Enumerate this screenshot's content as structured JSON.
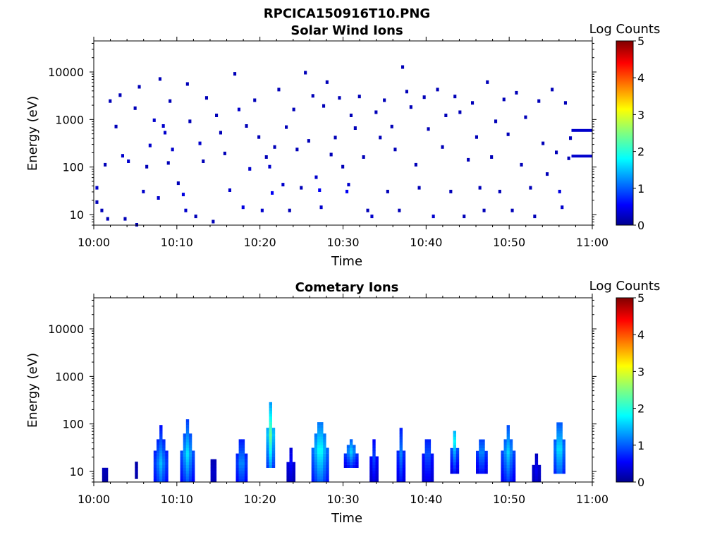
{
  "figure": {
    "title_line1": "RPCICA150916T10.PNG",
    "colorbar_label": "Log Counts",
    "colormap": "jet",
    "background": "#ffffff"
  },
  "chart_data": [
    {
      "type": "heatmap",
      "title": "Solar Wind Ions",
      "xlabel": "Time",
      "ylabel": "Energy (eV)",
      "y_scale": "log",
      "ylim": [
        6,
        45000
      ],
      "xlim": [
        "10:00",
        "11:00"
      ],
      "x_tick_labels": [
        "10:00",
        "10:10",
        "10:20",
        "10:30",
        "10:40",
        "10:50",
        "11:00"
      ],
      "y_tick_labels": [
        "10",
        "100",
        "1000",
        "10000"
      ],
      "colorbar": {
        "label": "Log Counts",
        "range": [
          0,
          5
        ],
        "tick_labels": [
          "0",
          "1",
          "2",
          "3",
          "4",
          "5"
        ]
      },
      "cells": [
        [
          0.2,
          18,
          0.2
        ],
        [
          0.2,
          36,
          0.3
        ],
        [
          0.8,
          12,
          0.2
        ],
        [
          1.2,
          110,
          0.2
        ],
        [
          1.5,
          8,
          0.2
        ],
        [
          1.8,
          2400,
          0.2
        ],
        [
          2.5,
          700,
          0.2
        ],
        [
          3.0,
          3200,
          0.2
        ],
        [
          3.3,
          170,
          0.3
        ],
        [
          3.6,
          8,
          0.2
        ],
        [
          4.0,
          130,
          0.3
        ],
        [
          4.8,
          1700,
          0.2
        ],
        [
          5.0,
          6,
          0.2
        ],
        [
          5.3,
          4800,
          0.2
        ],
        [
          5.8,
          30,
          0.3
        ],
        [
          6.2,
          100,
          0.2
        ],
        [
          6.6,
          280,
          0.3
        ],
        [
          7.1,
          950,
          0.3
        ],
        [
          7.6,
          22,
          0.3
        ],
        [
          7.8,
          7000,
          0.2
        ],
        [
          8.2,
          720,
          0.3
        ],
        [
          8.4,
          520,
          0.3
        ],
        [
          8.8,
          120,
          0.2
        ],
        [
          9.0,
          2400,
          0.2
        ],
        [
          9.3,
          230,
          0.3
        ],
        [
          10.0,
          45,
          0.2
        ],
        [
          10.6,
          26,
          0.4
        ],
        [
          10.9,
          12,
          0.3
        ],
        [
          11.1,
          5500,
          0.2
        ],
        [
          11.4,
          900,
          0.2
        ],
        [
          12.1,
          9,
          0.2
        ],
        [
          12.6,
          310,
          0.3
        ],
        [
          13.0,
          130,
          0.2
        ],
        [
          13.4,
          2800,
          0.2
        ],
        [
          14.2,
          7,
          0.2
        ],
        [
          14.6,
          1200,
          0.2
        ],
        [
          15.1,
          520,
          0.2
        ],
        [
          15.6,
          190,
          0.2
        ],
        [
          16.2,
          32,
          0.3
        ],
        [
          16.8,
          9000,
          0.2
        ],
        [
          17.3,
          1600,
          0.3
        ],
        [
          17.8,
          14,
          0.4
        ],
        [
          18.2,
          720,
          0.2
        ],
        [
          18.6,
          90,
          0.3
        ],
        [
          19.2,
          2500,
          0.2
        ],
        [
          19.7,
          420,
          0.2
        ],
        [
          20.1,
          12,
          0.3
        ],
        [
          20.6,
          160,
          0.2
        ],
        [
          21.0,
          100,
          0.3
        ],
        [
          21.3,
          28,
          0.5
        ],
        [
          21.6,
          260,
          0.2
        ],
        [
          22.1,
          4200,
          0.2
        ],
        [
          22.6,
          42,
          0.3
        ],
        [
          23.0,
          680,
          0.2
        ],
        [
          23.4,
          12,
          0.2
        ],
        [
          23.9,
          1600,
          0.2
        ],
        [
          24.3,
          230,
          0.2
        ],
        [
          24.8,
          36,
          0.2
        ],
        [
          25.3,
          9500,
          0.2
        ],
        [
          25.7,
          350,
          0.2
        ],
        [
          26.2,
          3100,
          0.2
        ],
        [
          26.6,
          60,
          0.3
        ],
        [
          27.0,
          32,
          0.5
        ],
        [
          27.2,
          14,
          0.3
        ],
        [
          27.5,
          1900,
          0.2
        ],
        [
          27.9,
          6000,
          0.2
        ],
        [
          28.4,
          180,
          0.2
        ],
        [
          28.9,
          410,
          0.2
        ],
        [
          29.4,
          2800,
          0.2
        ],
        [
          29.8,
          100,
          0.2
        ],
        [
          30.3,
          30,
          0.5
        ],
        [
          30.5,
          42,
          0.3
        ],
        [
          30.8,
          1200,
          0.2
        ],
        [
          31.3,
          650,
          0.2
        ],
        [
          31.8,
          3000,
          0.2
        ],
        [
          32.3,
          160,
          0.2
        ],
        [
          32.8,
          12,
          0.2
        ],
        [
          33.3,
          9,
          0.3
        ],
        [
          33.8,
          1400,
          0.2
        ],
        [
          34.3,
          410,
          0.2
        ],
        [
          34.8,
          2500,
          0.2
        ],
        [
          35.2,
          30,
          0.2
        ],
        [
          35.7,
          700,
          0.2
        ],
        [
          36.1,
          230,
          0.2
        ],
        [
          36.6,
          12,
          0.2
        ],
        [
          37.0,
          12500,
          0.2
        ],
        [
          37.5,
          3800,
          0.2
        ],
        [
          38.0,
          1800,
          0.2
        ],
        [
          38.6,
          110,
          0.2
        ],
        [
          39.0,
          36,
          0.2
        ],
        [
          39.6,
          2900,
          0.2
        ],
        [
          40.1,
          620,
          0.2
        ],
        [
          40.7,
          9,
          0.3
        ],
        [
          41.2,
          4200,
          0.2
        ],
        [
          41.8,
          260,
          0.2
        ],
        [
          42.2,
          1200,
          0.2
        ],
        [
          42.8,
          30,
          0.2
        ],
        [
          43.3,
          3000,
          0.2
        ],
        [
          43.9,
          1400,
          0.2
        ],
        [
          44.4,
          9,
          0.2
        ],
        [
          44.9,
          140,
          0.2
        ],
        [
          45.4,
          2200,
          0.2
        ],
        [
          45.9,
          420,
          0.2
        ],
        [
          46.3,
          36,
          0.2
        ],
        [
          46.8,
          12,
          0.2
        ],
        [
          47.2,
          6000,
          0.2
        ],
        [
          47.7,
          160,
          0.2
        ],
        [
          48.2,
          900,
          0.2
        ],
        [
          48.7,
          30,
          0.2
        ],
        [
          49.2,
          2600,
          0.2
        ],
        [
          49.7,
          480,
          0.2
        ],
        [
          50.2,
          12,
          0.2
        ],
        [
          50.7,
          3600,
          0.2
        ],
        [
          51.3,
          110,
          0.2
        ],
        [
          51.8,
          1100,
          0.2
        ],
        [
          52.4,
          36,
          0.2
        ],
        [
          52.9,
          9,
          0.2
        ],
        [
          53.4,
          2400,
          0.2
        ],
        [
          53.9,
          310,
          0.2
        ],
        [
          54.4,
          70,
          0.2
        ],
        [
          55.0,
          4200,
          0.2
        ],
        [
          55.5,
          200,
          0.2
        ],
        [
          55.9,
          30,
          0.4
        ],
        [
          56.2,
          14,
          0.3
        ],
        [
          56.6,
          2200,
          0.2
        ],
        [
          57.0,
          150,
          0.2
        ],
        [
          57.2,
          400,
          0.2
        ]
      ],
      "bands": [
        {
          "from": "10:57.5",
          "to": "10:60",
          "energy": 590,
          "value": 0.3
        },
        {
          "from": "10:57.5",
          "to": "10:60",
          "energy": 170,
          "value": 0.3
        }
      ]
    },
    {
      "type": "heatmap",
      "title": "Cometary Ions",
      "xlabel": "Time",
      "ylabel": "Energy (eV)",
      "y_scale": "log",
      "ylim": [
        6,
        45000
      ],
      "xlim": [
        "10:00",
        "11:00"
      ],
      "x_tick_labels": [
        "10:00",
        "10:10",
        "10:20",
        "10:30",
        "10:40",
        "10:50",
        "11:00"
      ],
      "y_tick_labels": [
        "10",
        "100",
        "1000",
        "10000"
      ],
      "colorbar": {
        "label": "Log Counts",
        "range": [
          0,
          5
        ],
        "tick_labels": [
          "0",
          "1",
          "2",
          "3",
          "4",
          "5"
        ]
      },
      "bursts": [
        {
          "t": 1.3,
          "w": 0.6,
          "e_lo": 6,
          "e_hi": 16,
          "peak": 0.3,
          "peak_e": 10
        },
        {
          "t": 5.1,
          "w": 0.3,
          "e_lo": 7,
          "e_hi": 14,
          "peak": 0.2,
          "peak_e": 10
        },
        {
          "t": 8.0,
          "w": 1.6,
          "e_lo": 6,
          "e_hi": 90,
          "peak": 1.5,
          "peak_e": 14
        },
        {
          "t": 11.2,
          "w": 1.6,
          "e_lo": 6,
          "e_hi": 110,
          "peak": 1.7,
          "peak_e": 22
        },
        {
          "t": 14.4,
          "w": 0.7,
          "e_lo": 6,
          "e_hi": 28,
          "peak": 0.4,
          "peak_e": 9
        },
        {
          "t": 17.8,
          "w": 1.4,
          "e_lo": 6,
          "e_hi": 60,
          "peak": 1.4,
          "peak_e": 14
        },
        {
          "t": 21.2,
          "w": 0.9,
          "e_lo": 12,
          "e_hi": 260,
          "peak": 2.4,
          "peak_e": 55
        },
        {
          "t": 23.8,
          "w": 1.2,
          "e_lo": 6,
          "e_hi": 30,
          "peak": 0.6,
          "peak_e": 14
        },
        {
          "t": 27.2,
          "w": 2.0,
          "e_lo": 6,
          "e_hi": 150,
          "peak": 2.0,
          "peak_e": 26
        },
        {
          "t": 31.0,
          "w": 1.8,
          "e_lo": 12,
          "e_hi": 45,
          "peak": 1.6,
          "peak_e": 25
        },
        {
          "t": 33.8,
          "w": 1.2,
          "e_lo": 6,
          "e_hi": 42,
          "peak": 0.9,
          "peak_e": 18
        },
        {
          "t": 37.0,
          "w": 1.1,
          "e_lo": 6,
          "e_hi": 75,
          "peak": 1.2,
          "peak_e": 22
        },
        {
          "t": 40.2,
          "w": 1.4,
          "e_lo": 6,
          "e_hi": 60,
          "peak": 1.1,
          "peak_e": 22
        },
        {
          "t": 43.5,
          "w": 1.2,
          "e_lo": 9,
          "e_hi": 70,
          "peak": 1.8,
          "peak_e": 40
        },
        {
          "t": 46.7,
          "w": 1.4,
          "e_lo": 9,
          "e_hi": 55,
          "peak": 1.4,
          "peak_e": 24
        },
        {
          "t": 49.9,
          "w": 1.8,
          "e_lo": 6,
          "e_hi": 90,
          "peak": 1.6,
          "peak_e": 24
        },
        {
          "t": 53.2,
          "w": 0.9,
          "e_lo": 6,
          "e_hi": 22,
          "peak": 0.5,
          "peak_e": 10
        },
        {
          "t": 56.1,
          "w": 1.5,
          "e_lo": 9,
          "e_hi": 150,
          "peak": 1.9,
          "peak_e": 28
        }
      ]
    }
  ]
}
